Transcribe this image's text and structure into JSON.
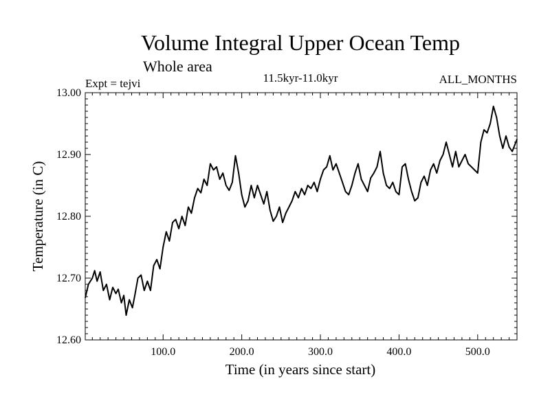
{
  "chart_data": {
    "type": "line",
    "title": "Volume Integral Upper Ocean Temp",
    "subtitle": "Whole area",
    "experiment_label": "Expt = tejvi",
    "period_label": "11.5kyr-11.0kyr",
    "months_label": "ALL_MONTHS",
    "xlabel": "Time (in years since start)",
    "ylabel": "Temperature (in C)",
    "xlim": [
      1,
      550
    ],
    "ylim": [
      12.6,
      13.0
    ],
    "xticks": [
      100,
      200,
      300,
      400,
      500
    ],
    "xtick_labels": [
      "100.0",
      "200.0",
      "300.0",
      "400.0",
      "500.0"
    ],
    "yticks": [
      12.6,
      12.7,
      12.8,
      12.9,
      13.0
    ],
    "ytick_labels": [
      "12.60",
      "12.70",
      "12.80",
      "12.90",
      "13.00"
    ],
    "series": [
      {
        "name": "Upper Ocean Temp",
        "color": "#000000",
        "points": [
          [
            1,
            12.668
          ],
          [
            5,
            12.69
          ],
          [
            10,
            12.7
          ],
          [
            13,
            12.712
          ],
          [
            16,
            12.695
          ],
          [
            20,
            12.71
          ],
          [
            24,
            12.68
          ],
          [
            28,
            12.69
          ],
          [
            32,
            12.665
          ],
          [
            36,
            12.685
          ],
          [
            40,
            12.675
          ],
          [
            43,
            12.682
          ],
          [
            47,
            12.66
          ],
          [
            50,
            12.672
          ],
          [
            53,
            12.64
          ],
          [
            57,
            12.665
          ],
          [
            61,
            12.652
          ],
          [
            64,
            12.672
          ],
          [
            68,
            12.7
          ],
          [
            72,
            12.705
          ],
          [
            76,
            12.68
          ],
          [
            80,
            12.695
          ],
          [
            84,
            12.68
          ],
          [
            88,
            12.72
          ],
          [
            92,
            12.73
          ],
          [
            96,
            12.715
          ],
          [
            100,
            12.75
          ],
          [
            104,
            12.775
          ],
          [
            108,
            12.76
          ],
          [
            112,
            12.79
          ],
          [
            116,
            12.795
          ],
          [
            120,
            12.78
          ],
          [
            124,
            12.8
          ],
          [
            128,
            12.785
          ],
          [
            132,
            12.815
          ],
          [
            136,
            12.805
          ],
          [
            140,
            12.83
          ],
          [
            144,
            12.845
          ],
          [
            148,
            12.838
          ],
          [
            152,
            12.86
          ],
          [
            156,
            12.85
          ],
          [
            160,
            12.885
          ],
          [
            164,
            12.875
          ],
          [
            168,
            12.88
          ],
          [
            172,
            12.86
          ],
          [
            176,
            12.87
          ],
          [
            180,
            12.85
          ],
          [
            184,
            12.842
          ],
          [
            188,
            12.855
          ],
          [
            192,
            12.898
          ],
          [
            196,
            12.87
          ],
          [
            200,
            12.835
          ],
          [
            204,
            12.815
          ],
          [
            208,
            12.825
          ],
          [
            212,
            12.85
          ],
          [
            216,
            12.83
          ],
          [
            220,
            12.85
          ],
          [
            224,
            12.835
          ],
          [
            228,
            12.82
          ],
          [
            232,
            12.84
          ],
          [
            236,
            12.81
          ],
          [
            240,
            12.792
          ],
          [
            244,
            12.8
          ],
          [
            248,
            12.815
          ],
          [
            252,
            12.79
          ],
          [
            256,
            12.805
          ],
          [
            260,
            12.815
          ],
          [
            264,
            12.825
          ],
          [
            268,
            12.84
          ],
          [
            272,
            12.83
          ],
          [
            276,
            12.845
          ],
          [
            280,
            12.835
          ],
          [
            284,
            12.85
          ],
          [
            288,
            12.845
          ],
          [
            292,
            12.855
          ],
          [
            296,
            12.84
          ],
          [
            300,
            12.86
          ],
          [
            304,
            12.875
          ],
          [
            308,
            12.88
          ],
          [
            312,
            12.898
          ],
          [
            316,
            12.875
          ],
          [
            320,
            12.885
          ],
          [
            324,
            12.87
          ],
          [
            328,
            12.855
          ],
          [
            332,
            12.84
          ],
          [
            336,
            12.835
          ],
          [
            340,
            12.85
          ],
          [
            344,
            12.87
          ],
          [
            348,
            12.885
          ],
          [
            352,
            12.86
          ],
          [
            356,
            12.85
          ],
          [
            360,
            12.84
          ],
          [
            364,
            12.862
          ],
          [
            368,
            12.87
          ],
          [
            372,
            12.88
          ],
          [
            376,
            12.905
          ],
          [
            380,
            12.87
          ],
          [
            384,
            12.85
          ],
          [
            388,
            12.845
          ],
          [
            392,
            12.855
          ],
          [
            396,
            12.84
          ],
          [
            400,
            12.835
          ],
          [
            404,
            12.88
          ],
          [
            408,
            12.885
          ],
          [
            412,
            12.86
          ],
          [
            416,
            12.84
          ],
          [
            420,
            12.825
          ],
          [
            424,
            12.83
          ],
          [
            428,
            12.855
          ],
          [
            432,
            12.865
          ],
          [
            436,
            12.85
          ],
          [
            440,
            12.875
          ],
          [
            444,
            12.885
          ],
          [
            448,
            12.87
          ],
          [
            452,
            12.89
          ],
          [
            456,
            12.9
          ],
          [
            460,
            12.92
          ],
          [
            464,
            12.9
          ],
          [
            468,
            12.88
          ],
          [
            472,
            12.905
          ],
          [
            476,
            12.88
          ],
          [
            480,
            12.89
          ],
          [
            484,
            12.9
          ],
          [
            488,
            12.885
          ],
          [
            492,
            12.88
          ],
          [
            496,
            12.875
          ],
          [
            500,
            12.87
          ],
          [
            504,
            12.92
          ],
          [
            508,
            12.94
          ],
          [
            512,
            12.935
          ],
          [
            516,
            12.95
          ],
          [
            520,
            12.978
          ],
          [
            524,
            12.96
          ],
          [
            528,
            12.93
          ],
          [
            532,
            12.91
          ],
          [
            536,
            12.93
          ],
          [
            540,
            12.912
          ],
          [
            544,
            12.905
          ],
          [
            548,
            12.918
          ],
          [
            550,
            12.925
          ]
        ]
      }
    ]
  }
}
